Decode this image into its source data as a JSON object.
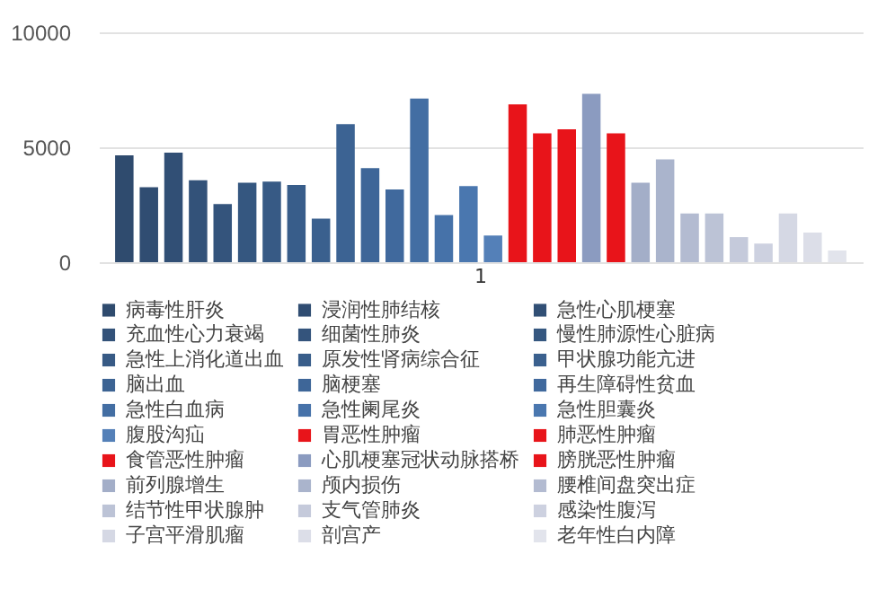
{
  "chart_data": {
    "type": "bar",
    "categories": [
      "1"
    ],
    "series": [
      {
        "name": "病毒性肝炎",
        "color": "#2f4b6e",
        "values": [
          4650
        ]
      },
      {
        "name": "浸润性肺结核",
        "color": "#304d72",
        "values": [
          3260
        ]
      },
      {
        "name": "急性心肌梗塞",
        "color": "#314f75",
        "values": [
          4770
        ]
      },
      {
        "name": "充血性心力衰竭",
        "color": "#335279",
        "values": [
          3560
        ]
      },
      {
        "name": "细菌性肺炎",
        "color": "#34547c",
        "values": [
          2530
        ]
      },
      {
        "name": "慢性肺源性心脏病",
        "color": "#355780",
        "values": [
          3460
        ]
      },
      {
        "name": "急性上消化道出血",
        "color": "#375a85",
        "values": [
          3510
        ]
      },
      {
        "name": "原发性肾病综合征",
        "color": "#385d8a",
        "values": [
          3360
        ]
      },
      {
        "name": "甲状腺功能亢进",
        "color": "#3a608e",
        "values": [
          1890
        ]
      },
      {
        "name": "脑出血",
        "color": "#3c6393",
        "values": [
          6010
        ]
      },
      {
        "name": "脑梗塞",
        "color": "#3e6698",
        "values": [
          4090
        ]
      },
      {
        "name": "再生障碍性贫血",
        "color": "#40699d",
        "values": [
          3160
        ]
      },
      {
        "name": "急性白血病",
        "color": "#436ea3",
        "values": [
          7120
        ]
      },
      {
        "name": "急性阑尾炎",
        "color": "#4672a9",
        "values": [
          2050
        ]
      },
      {
        "name": "急性胆囊炎",
        "color": "#4a77af",
        "values": [
          3310
        ]
      },
      {
        "name": "腹股沟疝",
        "color": "#5480b8",
        "values": [
          1160
        ]
      },
      {
        "name": "胃恶性肿瘤",
        "color": "#e8141a",
        "values": [
          6870
        ]
      },
      {
        "name": "肺恶性肿瘤",
        "color": "#e8141a",
        "values": [
          5610
        ]
      },
      {
        "name": "食管恶性肿瘤",
        "color": "#e8141a",
        "values": [
          5780
        ]
      },
      {
        "name": "心肌梗塞冠状动脉搭桥",
        "color": "#8b9bc0",
        "values": [
          7320
        ]
      },
      {
        "name": "膀胱恶性肿瘤",
        "color": "#e8141a",
        "values": [
          5610
        ]
      },
      {
        "name": "前列腺增生",
        "color": "#a3aec8",
        "values": [
          3460
        ]
      },
      {
        "name": "颅内损伤",
        "color": "#aab4cc",
        "values": [
          4470
        ]
      },
      {
        "name": "腰椎间盘突出症",
        "color": "#b3bbd1",
        "values": [
          2120
        ]
      },
      {
        "name": "结节性甲状腺肿",
        "color": "#bcc3d6",
        "values": [
          2120
        ]
      },
      {
        "name": "支气管肺炎",
        "color": "#c5cadb",
        "values": [
          1090
        ]
      },
      {
        "name": "感染性腹泻",
        "color": "#cdd1e0",
        "values": [
          810
        ]
      },
      {
        "name": "子宫平滑肌瘤",
        "color": "#d5d8e4",
        "values": [
          2120
        ]
      },
      {
        "name": "剖宫产",
        "color": "#dcdee8",
        "values": [
          1290
        ]
      },
      {
        "name": "老年性白内障",
        "color": "#e2e4ec",
        "values": [
          510
        ]
      }
    ],
    "ylim": [
      0,
      10000
    ],
    "yticks": [
      0,
      5000,
      10000
    ],
    "grid": "y",
    "legend": "bottom"
  }
}
